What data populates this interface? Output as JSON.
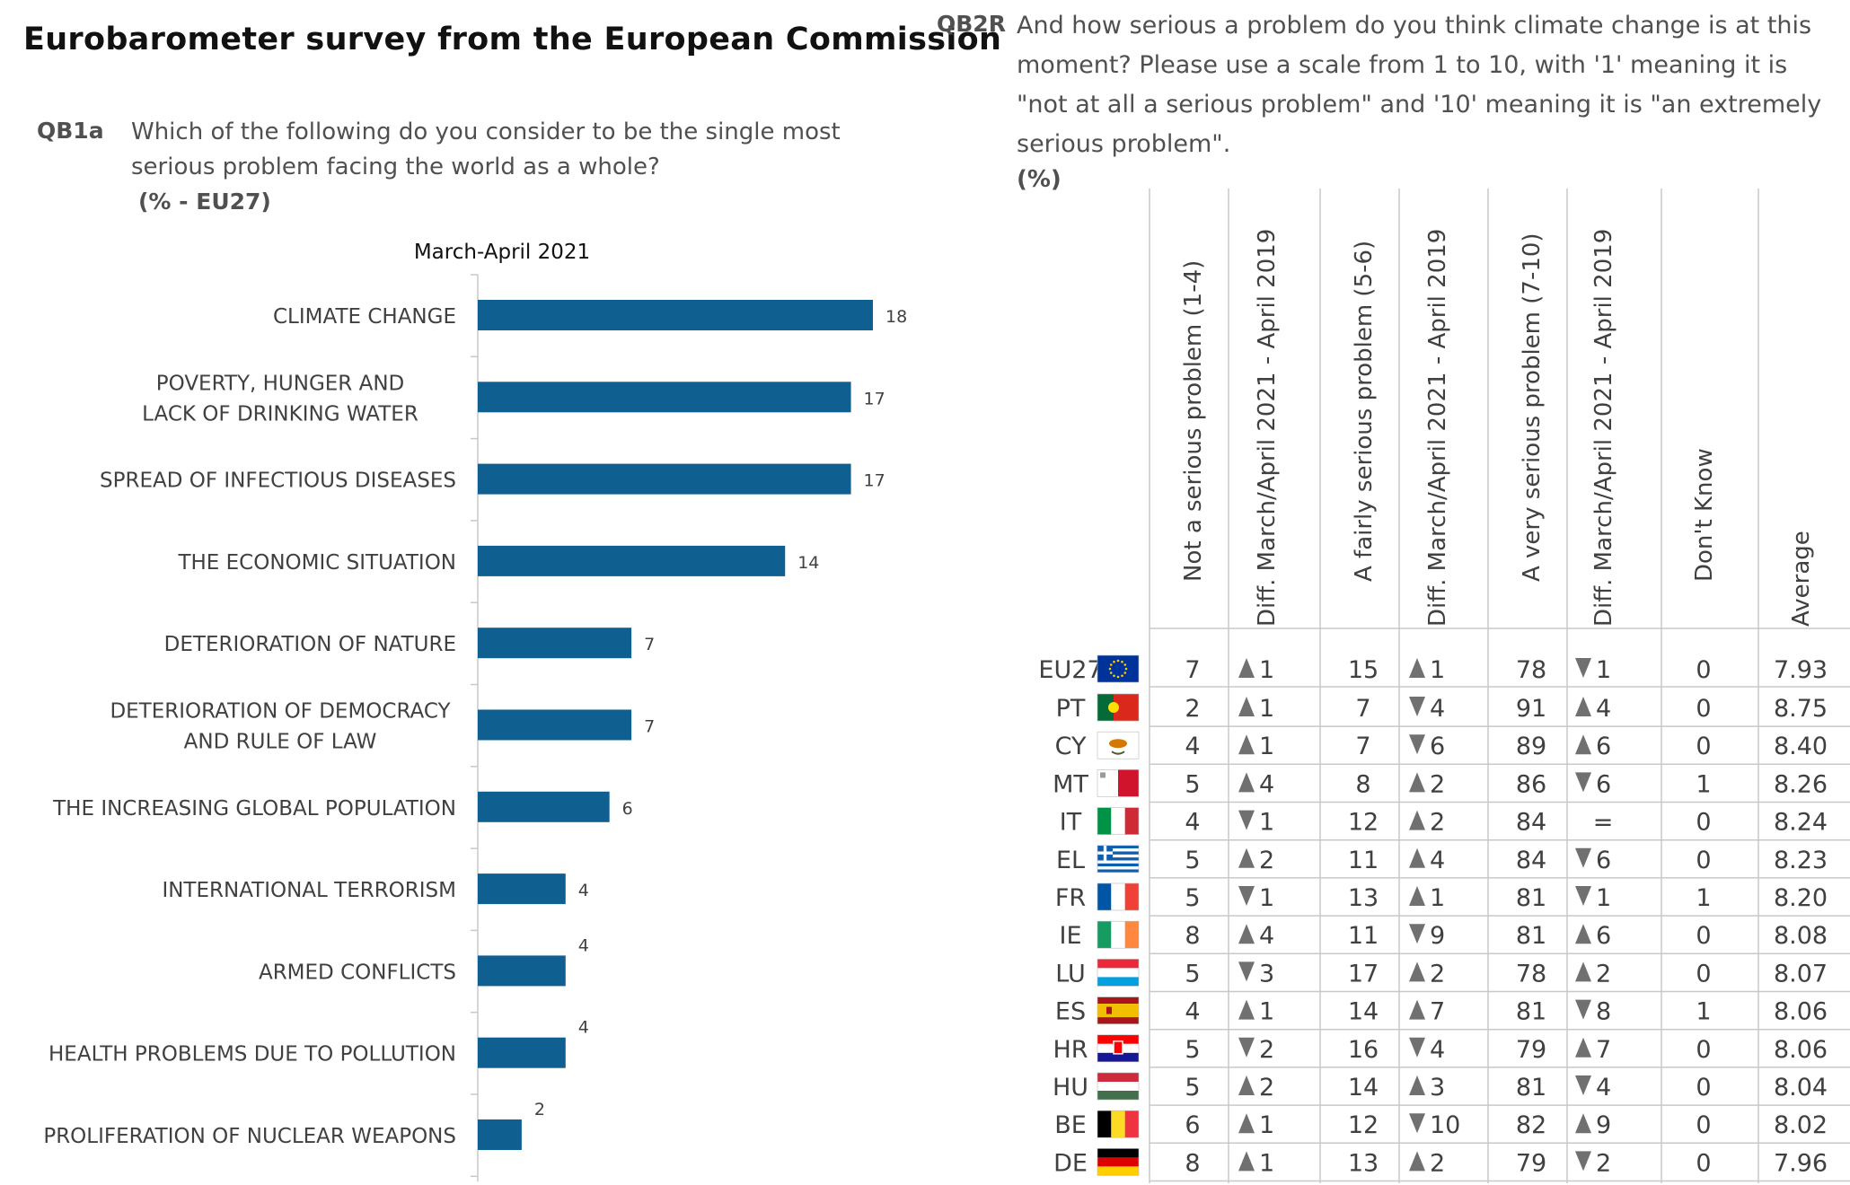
{
  "title": "Eurobarometer survey from the European Commission",
  "qb1": {
    "code": "QB1a",
    "question": "Which of the following do you consider to be the single most serious problem facing the world as a whole?",
    "unit": "(% - EU27)",
    "period": "March-April 2021"
  },
  "qb2": {
    "code": "QB2R",
    "question": "And how serious a problem do you think climate change is at this moment? Please use a scale from 1 to 10, with '1' meaning it is \"not at all a serious problem\" and '10' meaning it is \"an extremely serious problem\".",
    "unit": "(%)"
  },
  "chart_data": [
    {
      "type": "bar",
      "orientation": "horizontal",
      "title": "March-April 2021",
      "categories": [
        [
          "CLIMATE CHANGE"
        ],
        [
          "POVERTY, HUNGER AND",
          "LACK OF DRINKING WATER"
        ],
        [
          "SPREAD OF INFECTIOUS DISEASES"
        ],
        [
          "THE ECONOMIC SITUATION"
        ],
        [
          "DETERIORATION OF NATURE"
        ],
        [
          "DETERIORATION OF DEMOCRACY",
          "AND RULE OF LAW"
        ],
        [
          "THE INCREASING GLOBAL POPULATION"
        ],
        [
          "INTERNATIONAL TERRORISM"
        ],
        [
          "ARMED CONFLICTS"
        ],
        [
          "HEALTH PROBLEMS DUE TO POLLUTION"
        ],
        [
          "PROLIFERATION OF NUCLEAR WEAPONS"
        ]
      ],
      "values": [
        18,
        17,
        17,
        14,
        7,
        7,
        6,
        4,
        4,
        4,
        2
      ],
      "xlim": [
        0,
        18
      ],
      "grid": false,
      "bar_color": "#0f6091"
    },
    {
      "type": "table",
      "columns": [
        "Not a serious problem (1-4)",
        "Diff. March/April 2021 - April 2019",
        "A fairly serious problem (5-6)",
        "Diff. March/April 2021 - April 2019",
        "A very serious problem (7-10)",
        "Diff. March/April 2021 - April 2019",
        "Don't Know",
        "Average"
      ],
      "diff_columns": [
        1,
        3,
        5
      ],
      "rows": [
        {
          "country": "EU27",
          "flag": "eu-flag",
          "cells": [
            "7",
            "▲1",
            "15",
            "▲1",
            "78",
            "▼1",
            "0",
            "7.93"
          ]
        },
        {
          "country": "PT",
          "flag": "portugal-flag",
          "cells": [
            "2",
            "▲1",
            "7",
            "▼4",
            "91",
            "▲4",
            "0",
            "8.75"
          ]
        },
        {
          "country": "CY",
          "flag": "cyprus-flag",
          "cells": [
            "4",
            "▲1",
            "7",
            "▼6",
            "89",
            "▲6",
            "0",
            "8.40"
          ]
        },
        {
          "country": "MT",
          "flag": "malta-flag",
          "cells": [
            "5",
            "▲4",
            "8",
            "▲2",
            "86",
            "▼6",
            "1",
            "8.26"
          ]
        },
        {
          "country": "IT",
          "flag": "italy-flag",
          "cells": [
            "4",
            "▼1",
            "12",
            "▲2",
            "84",
            "=",
            "0",
            "8.24"
          ]
        },
        {
          "country": "EL",
          "flag": "greece-flag",
          "cells": [
            "5",
            "▲2",
            "11",
            "▲4",
            "84",
            "▼6",
            "0",
            "8.23"
          ]
        },
        {
          "country": "FR",
          "flag": "france-flag",
          "cells": [
            "5",
            "▼1",
            "13",
            "▲1",
            "81",
            "▼1",
            "1",
            "8.20"
          ]
        },
        {
          "country": "IE",
          "flag": "ireland-flag",
          "cells": [
            "8",
            "▲4",
            "11",
            "▼9",
            "81",
            "▲6",
            "0",
            "8.08"
          ]
        },
        {
          "country": "LU",
          "flag": "luxembourg-flag",
          "cells": [
            "5",
            "▼3",
            "17",
            "▲2",
            "78",
            "▲2",
            "0",
            "8.07"
          ]
        },
        {
          "country": "ES",
          "flag": "spain-flag",
          "cells": [
            "4",
            "▲1",
            "14",
            "▲7",
            "81",
            "▼8",
            "1",
            "8.06"
          ]
        },
        {
          "country": "HR",
          "flag": "croatia-flag",
          "cells": [
            "5",
            "▼2",
            "16",
            "▼4",
            "79",
            "▲7",
            "0",
            "8.06"
          ]
        },
        {
          "country": "HU",
          "flag": "hungary-flag",
          "cells": [
            "5",
            "▲2",
            "14",
            "▲3",
            "81",
            "▼4",
            "0",
            "8.04"
          ]
        },
        {
          "country": "BE",
          "flag": "belgium-flag",
          "cells": [
            "6",
            "▲1",
            "12",
            "▼10",
            "82",
            "▲9",
            "0",
            "8.02"
          ]
        },
        {
          "country": "DE",
          "flag": "germany-flag",
          "cells": [
            "8",
            "▲1",
            "13",
            "▲2",
            "79",
            "▼2",
            "0",
            "7.96"
          ]
        }
      ]
    }
  ]
}
